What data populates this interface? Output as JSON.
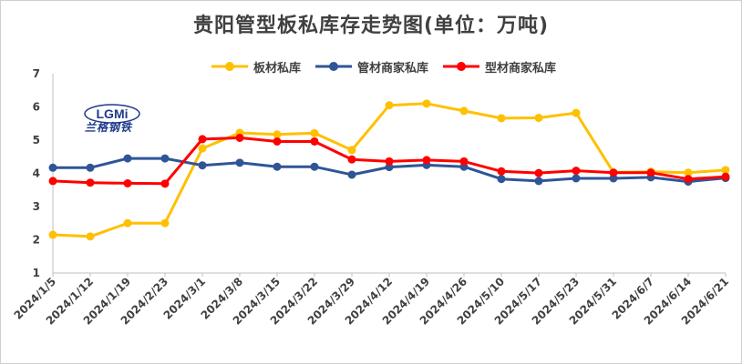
{
  "chart_data": {
    "type": "line",
    "title": "贵阳管型板私库存走势图(单位：万吨)",
    "categories": [
      "2024/1/5",
      "2024/1/12",
      "2024/1/19",
      "2024/2/23",
      "2024/3/1",
      "2024/3/8",
      "2024/3/15",
      "2024/3/22",
      "2024/3/29",
      "2024/4/12",
      "2024/4/19",
      "2024/4/26",
      "2024/5/10",
      "2024/5/17",
      "2024/5/23",
      "2024/5/31",
      "2024/6/7",
      "2024/6/14",
      "2024/6/21"
    ],
    "ylim": [
      1,
      7
    ],
    "yticks": [
      "1",
      "2",
      "3",
      "4",
      "5",
      "6",
      "7"
    ],
    "legend_position": "top",
    "grid": false,
    "series": [
      {
        "name": "板材私库",
        "color": "#FFC000",
        "values": [
          2.15,
          2.1,
          2.5,
          2.5,
          4.75,
          5.22,
          5.17,
          5.21,
          4.7,
          6.05,
          6.1,
          5.88,
          5.66,
          5.67,
          5.82,
          4.03,
          4.05,
          4.02,
          4.1
        ]
      },
      {
        "name": "管材商家私库",
        "color": "#2F5597",
        "values": [
          4.17,
          4.17,
          4.45,
          4.45,
          4.24,
          4.32,
          4.2,
          4.2,
          3.96,
          4.19,
          4.25,
          4.2,
          3.83,
          3.77,
          3.85,
          3.85,
          3.88,
          3.75,
          3.86
        ]
      },
      {
        "name": "型材商家私库",
        "color": "#FF0000",
        "values": [
          3.77,
          3.72,
          3.7,
          3.69,
          5.03,
          5.07,
          4.96,
          4.96,
          4.42,
          4.36,
          4.4,
          4.36,
          4.06,
          4.01,
          4.08,
          4.02,
          4.02,
          3.83,
          3.9
        ]
      }
    ]
  },
  "logo": {
    "letters": "LGMi",
    "text": "兰格钢铁",
    "color": "#1f3a8a"
  }
}
